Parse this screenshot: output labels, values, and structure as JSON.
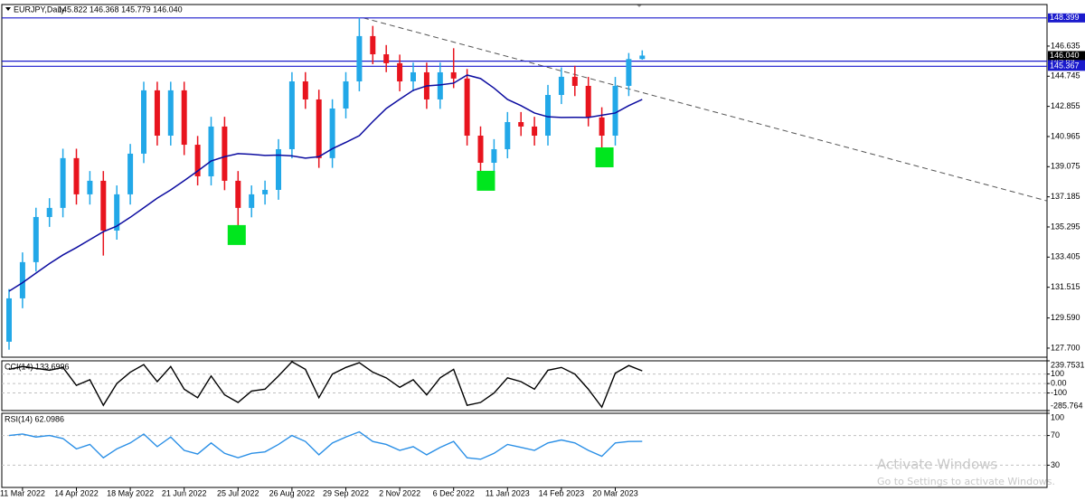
{
  "chart_data": [
    {
      "type": "candlestick",
      "symbol": "EURJPY,Daily",
      "ohlc": "145.822 146.368 145.779 146.040",
      "categories": [
        null,
        "11 Mar 2022",
        null,
        null,
        null,
        "14 Apr 2022",
        null,
        null,
        null,
        "18 May 2022",
        null,
        null,
        null,
        "21 Jun 2022",
        null,
        null,
        null,
        "25 Jul 2022",
        null,
        null,
        null,
        "26 Aug 2022",
        null,
        null,
        null,
        "29 Sep 2022",
        null,
        null,
        null,
        "2 Nov 2022",
        null,
        null,
        null,
        "6 Dec 2022",
        null,
        null,
        null,
        "11 Jan 2023",
        null,
        null,
        null,
        "14 Feb 2023",
        null,
        null,
        null,
        "20 Mar 2023",
        null,
        null
      ],
      "open": [
        128.1,
        130.82,
        133.09,
        135.92,
        136.49,
        139.61,
        137.34,
        138.19,
        135.07,
        137.34,
        139.89,
        143.86,
        141.02,
        143.86,
        140.45,
        138.47,
        141.59,
        138.19,
        136.49,
        137.34,
        137.62,
        140.17,
        144.42,
        143.29,
        139.61,
        142.72,
        144.42,
        147.26,
        146.12,
        145.56,
        144.42,
        144.99,
        143.29,
        144.99,
        144.6,
        141.02,
        139.32,
        140.17,
        141.87,
        141.59,
        141.02,
        143.57,
        144.71,
        144.14,
        142.16,
        141.02,
        144.14,
        145.822
      ],
      "high": [
        131.4,
        133.7,
        136.5,
        137.1,
        140.2,
        140.2,
        138.8,
        138.8,
        137.9,
        140.5,
        144.4,
        144.4,
        144.4,
        144.4,
        141.0,
        142.2,
        142.2,
        138.8,
        137.9,
        138.2,
        140.8,
        145.0,
        145.0,
        143.9,
        143.3,
        145.0,
        148.4,
        147.9,
        146.7,
        146.1,
        145.6,
        145.6,
        145.6,
        146.5,
        145.2,
        141.6,
        140.8,
        142.5,
        142.5,
        142.2,
        144.2,
        145.3,
        145.4,
        144.7,
        142.8,
        144.7,
        146.2,
        146.368
      ],
      "low": [
        127.6,
        130.2,
        132.5,
        135.3,
        135.9,
        136.7,
        136.7,
        133.5,
        134.5,
        136.7,
        139.3,
        140.4,
        140.4,
        139.8,
        137.9,
        137.9,
        137.6,
        135.0,
        135.9,
        136.7,
        137.0,
        139.6,
        142.7,
        139.0,
        139.0,
        142.1,
        143.8,
        145.5,
        145.0,
        143.8,
        143.8,
        142.7,
        142.7,
        144.0,
        140.4,
        138.0,
        138.7,
        139.6,
        141.0,
        140.4,
        140.4,
        143.0,
        143.5,
        141.6,
        139.8,
        140.4,
        143.5,
        145.779
      ],
      "close": [
        130.82,
        133.09,
        135.92,
        136.49,
        139.61,
        137.34,
        138.19,
        135.07,
        137.34,
        139.89,
        143.86,
        141.02,
        143.86,
        140.45,
        138.47,
        141.59,
        138.19,
        136.49,
        137.34,
        137.62,
        140.17,
        144.42,
        143.29,
        139.61,
        142.72,
        144.42,
        147.26,
        146.12,
        145.56,
        144.42,
        144.99,
        143.29,
        144.99,
        144.6,
        141.02,
        139.32,
        140.17,
        141.87,
        141.59,
        141.02,
        143.57,
        144.71,
        144.14,
        142.16,
        141.02,
        144.14,
        145.822,
        146.04
      ],
      "up_color": "#22a8e8",
      "down_color": "#e8141e",
      "series": [
        {
          "color": "#0c0ca0",
          "values": [
            131.27,
            131.8,
            132.4,
            133.0,
            133.54,
            134.0,
            134.5,
            135.0,
            135.35,
            135.9,
            136.5,
            137.1,
            137.62,
            138.2,
            138.8,
            139.43,
            139.7,
            139.89,
            139.85,
            139.78,
            139.8,
            139.75,
            139.61,
            139.7,
            140.2,
            140.6,
            141.02,
            141.9,
            142.72,
            143.3,
            143.86,
            144.14,
            144.2,
            144.31,
            144.82,
            144.6,
            144.0,
            143.29,
            142.9,
            142.44,
            142.2,
            142.16,
            142.17,
            142.16,
            142.3,
            142.44,
            142.9,
            143.29
          ]
        }
      ],
      "ylim": [
        127.13,
        149.24
      ],
      "yticks": [
        {
          "value": 127.7,
          "label": "127.700"
        },
        {
          "value": 129.59,
          "label": "129.590"
        },
        131.515,
        133.405,
        135.295,
        137.185,
        139.075,
        140.965,
        142.855,
        144.745,
        146.635
      ],
      "hlines": [
        148.399,
        145.69,
        145.367
      ],
      "hline_color": "#1a1acc",
      "last": {
        "value": 146.04,
        "label": "146.040"
      },
      "trendline": {
        "x": [
          26.3,
          77
        ],
        "y": [
          148.4,
          136.94
        ],
        "color": "#555555"
      },
      "markers": [
        {
          "x": 16.9,
          "y": 134.79
        },
        {
          "x": 35.4,
          "y": 138.19
        },
        {
          "x": 44.2,
          "y": 139.66
        }
      ],
      "marker_color": "#00e61e",
      "watermark": [
        "Activate Windows",
        "Go to Settings to activate Windows."
      ]
    },
    {
      "type": "line",
      "title": "CCI(14) 133.6996",
      "color": "#000000",
      "values": [
        150,
        180,
        160,
        140,
        170,
        -20,
        40,
        -230,
        0,
        120,
        200,
        20,
        180,
        -60,
        -150,
        80,
        -120,
        -200,
        -80,
        -60,
        80,
        230,
        150,
        -150,
        100,
        170,
        220,
        120,
        60,
        -40,
        40,
        -120,
        60,
        150,
        -230,
        -200,
        -100,
        60,
        20,
        -60,
        140,
        170,
        100,
        -60,
        -250,
        110,
        190,
        133.6996
      ],
      "ylim": [
        -285.764,
        239.7531
      ],
      "yticks": [
        239.7531,
        100,
        {
          "value": 0,
          "label": "0.00"
        },
        -100,
        -285.764
      ]
    },
    {
      "type": "line",
      "title": "RSI(14) 62.0986",
      "color": "#2a8fe6",
      "values": [
        70,
        72,
        68,
        70,
        66,
        52,
        58,
        40,
        52,
        60,
        72,
        55,
        68,
        50,
        45,
        60,
        46,
        40,
        46,
        48,
        58,
        70,
        62,
        44,
        60,
        68,
        75,
        62,
        58,
        50,
        55,
        44,
        54,
        62,
        40,
        38,
        46,
        58,
        54,
        50,
        60,
        64,
        60,
        50,
        42,
        60,
        62,
        62.0986
      ],
      "ylim": [
        0,
        100
      ],
      "yticks": [
        100,
        70,
        30
      ]
    }
  ]
}
